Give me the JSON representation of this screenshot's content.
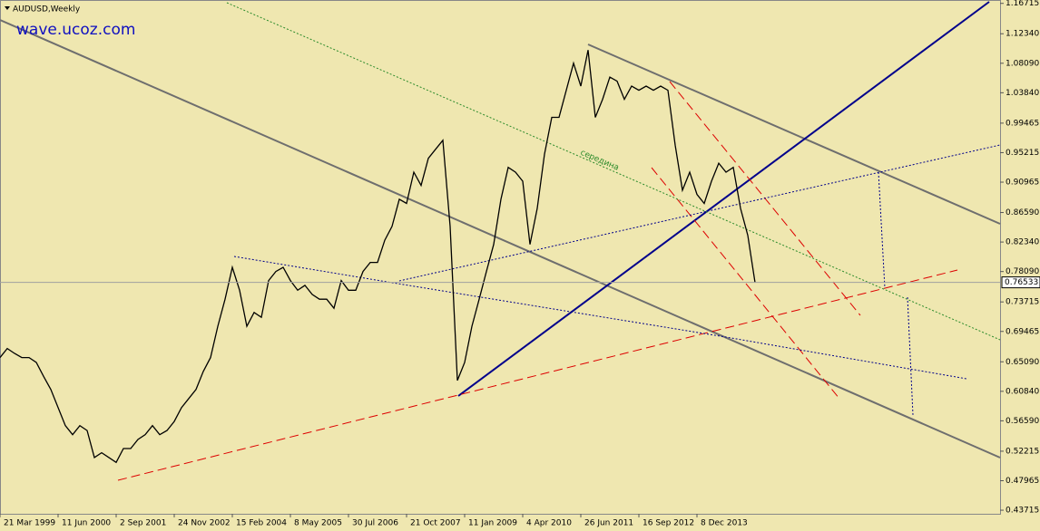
{
  "chart_data": {
    "type": "line",
    "title": "AUDUSD,Weekly",
    "watermark": "wave.ucoz.com",
    "annotation": "середина",
    "current_price": 0.76533,
    "xlim": [
      0,
      1102
    ],
    "xticks": [
      {
        "value": 0,
        "label": "21 Mar 1999"
      },
      {
        "value": 64,
        "label": "11 Jun 2000"
      },
      {
        "value": 128,
        "label": "2 Sep 2001"
      },
      {
        "value": 192,
        "label": "24 Nov 2002"
      },
      {
        "value": 256,
        "label": "15 Feb 2004"
      },
      {
        "value": 320,
        "label": "8 May 2005"
      },
      {
        "value": 384,
        "label": "30 Jul 2006"
      },
      {
        "value": 448,
        "label": "21 Oct 2007"
      },
      {
        "value": 512,
        "label": "11 Jan 2009"
      },
      {
        "value": 576,
        "label": "4 Apr 2010"
      },
      {
        "value": 640,
        "label": "26 Jun 2011"
      },
      {
        "value": 704,
        "label": "16 Sep 2012"
      },
      {
        "value": 768,
        "label": "8 Dec 2013"
      }
    ],
    "ylim": [
      0.432,
      1.172
    ],
    "yticks": [
      1.16715,
      {
        "value": 1.1234,
        "label": "1.12340"
      },
      {
        "value": 1.0809,
        "label": "1.08090"
      },
      {
        "value": 1.0384,
        "label": "1.03840"
      },
      0.99465,
      0.95215,
      0.90965,
      {
        "value": 0.8659,
        "label": "0.86590"
      },
      {
        "value": 0.8234,
        "label": "0.82340"
      },
      {
        "value": 0.7809,
        "label": "0.78090"
      },
      0.73715,
      0.69465,
      {
        "value": 0.6509,
        "label": "0.65090"
      },
      {
        "value": 0.6084,
        "label": "0.60840"
      },
      {
        "value": 0.5659,
        "label": "0.56590"
      },
      0.52215,
      0.47965,
      0.43715
    ],
    "x": [
      0,
      8,
      16,
      24,
      32,
      40,
      48,
      56,
      64,
      72,
      80,
      88,
      96,
      104,
      112,
      120,
      128,
      136,
      144,
      152,
      160,
      168,
      176,
      184,
      192,
      200,
      208,
      216,
      224,
      232,
      240,
      248,
      256,
      264,
      272,
      280,
      288,
      296,
      304,
      312,
      320,
      328,
      336,
      344,
      352,
      360,
      368,
      376,
      384,
      392,
      400,
      408,
      416,
      424,
      432,
      440,
      448,
      456,
      464,
      472,
      480,
      488,
      496,
      504,
      512,
      520,
      528,
      536,
      544,
      552,
      560,
      568,
      576,
      584,
      592,
      600,
      608,
      616,
      624,
      632,
      640,
      648,
      656,
      664,
      672,
      680,
      688,
      696,
      704,
      712,
      720,
      728,
      736,
      744,
      752,
      760,
      768,
      776,
      784,
      792,
      800,
      808,
      816,
      824,
      832
    ],
    "series": [
      {
        "name": "AUDUSD",
        "color": "#000000",
        "values": [
          0.657,
          0.67,
          0.663,
          0.657,
          0.657,
          0.65,
          0.63,
          0.611,
          0.585,
          0.559,
          0.546,
          0.559,
          0.552,
          0.513,
          0.52,
          0.513,
          0.506,
          0.526,
          0.526,
          0.539,
          0.546,
          0.559,
          0.546,
          0.552,
          0.565,
          0.585,
          0.598,
          0.611,
          0.637,
          0.657,
          0.702,
          0.741,
          0.787,
          0.754,
          0.702,
          0.722,
          0.715,
          0.768,
          0.781,
          0.787,
          0.768,
          0.754,
          0.761,
          0.748,
          0.741,
          0.741,
          0.728,
          0.768,
          0.754,
          0.754,
          0.781,
          0.794,
          0.794,
          0.826,
          0.846,
          0.885,
          0.879,
          0.924,
          0.905,
          0.944,
          0.957,
          0.97,
          0.846,
          0.624,
          0.65,
          0.702,
          0.741,
          0.781,
          0.82,
          0.885,
          0.931,
          0.924,
          0.911,
          0.82,
          0.872,
          0.95,
          1.003,
          1.003,
          1.042,
          1.081,
          1.048,
          1.1,
          1.003,
          1.029,
          1.061,
          1.055,
          1.029,
          1.048,
          1.042,
          1.048,
          1.042,
          1.048,
          1.042,
          0.963,
          0.898,
          0.924,
          0.892,
          0.879,
          0.911,
          0.937,
          0.924,
          0.931,
          0.872,
          0.833,
          0.765
        ]
      }
    ]
  }
}
